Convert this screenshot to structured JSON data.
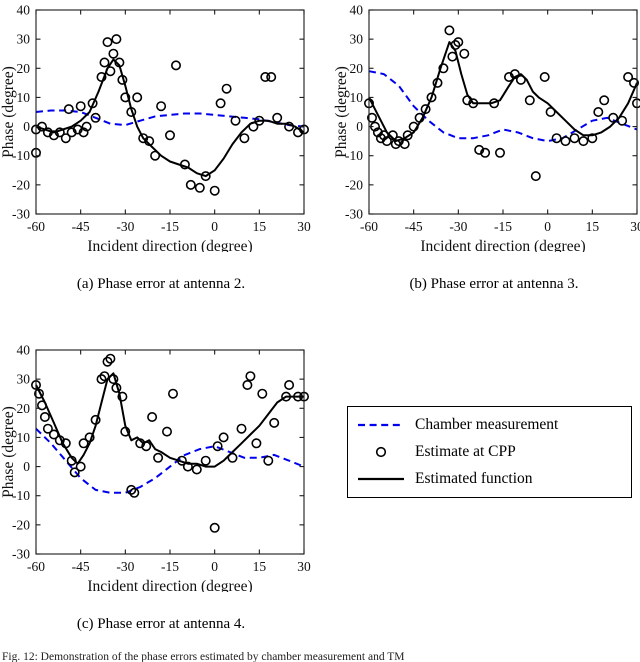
{
  "figure": {
    "captions": {
      "a": "(a) Phase error at antenna 2.",
      "b": "(b) Phase error at antenna 3.",
      "c": "(c) Phase error at antenna 4."
    },
    "bottom_caption": "Fig. 12: Demonstration of the phase errors estimated by chamber measurement and TM"
  },
  "legend": {
    "position": "bottom-right",
    "items": [
      {
        "label": "Chamber measurement",
        "style": "dashed-line",
        "color": "#0000ee"
      },
      {
        "label": "Estimate at CPP",
        "style": "circle-marker",
        "color": "#000000"
      },
      {
        "label": "Estimated function",
        "style": "solid-line",
        "color": "#000000"
      }
    ]
  },
  "chart_data": [
    {
      "id": "a",
      "type": "line+scatter",
      "title": "",
      "xlabel": "Incident direction (degree)",
      "ylabel": "Phase (degree)",
      "xlim": [
        -60,
        30
      ],
      "ylim": [
        -30,
        40
      ],
      "xticks": [
        -60,
        -45,
        -30,
        -15,
        0,
        15,
        30
      ],
      "yticks": [
        -30,
        -20,
        -10,
        0,
        10,
        20,
        30,
        40
      ],
      "series": [
        {
          "name": "Chamber measurement",
          "kind": "line",
          "dashed": true,
          "color": "#0000ee",
          "x": [
            -60,
            -55,
            -50,
            -45,
            -40,
            -35,
            -30,
            -25,
            -20,
            -15,
            -10,
            -5,
            0,
            5,
            10,
            15,
            20,
            25,
            30
          ],
          "y": [
            5,
            5.5,
            5.5,
            5,
            3,
            1,
            0.5,
            2,
            3.5,
            4,
            4.5,
            4.5,
            4,
            3.5,
            3,
            2.5,
            1.5,
            0.5,
            0
          ]
        },
        {
          "name": "Estimated function",
          "kind": "line",
          "dashed": false,
          "color": "#000000",
          "x": [
            -60,
            -57,
            -54,
            -51,
            -48,
            -45,
            -42,
            -39,
            -36,
            -34,
            -32,
            -30,
            -28,
            -26,
            -24,
            -21,
            -18,
            -15,
            -12,
            -9,
            -6,
            -3,
            0,
            3,
            6,
            9,
            12,
            15,
            18,
            21,
            24,
            27,
            30
          ],
          "y": [
            0,
            -1,
            -2,
            -1,
            0,
            2,
            5,
            12,
            20,
            23,
            21,
            14,
            6,
            0,
            -4,
            -7,
            -10,
            -12,
            -13,
            -14,
            -16,
            -17,
            -15,
            -11,
            -6,
            -2,
            1,
            2,
            2,
            1,
            1,
            0,
            -2
          ]
        },
        {
          "name": "Estimate at CPP",
          "kind": "scatter",
          "color": "#000000",
          "points": [
            [
              -60,
              -1
            ],
            [
              -60,
              -9
            ],
            [
              -58,
              0
            ],
            [
              -56,
              -2
            ],
            [
              -54,
              -3
            ],
            [
              -52,
              -2
            ],
            [
              -50,
              -4
            ],
            [
              -49,
              6
            ],
            [
              -48,
              -2
            ],
            [
              -46,
              -1
            ],
            [
              -45,
              7
            ],
            [
              -44,
              -2
            ],
            [
              -43,
              0
            ],
            [
              -41,
              8
            ],
            [
              -40,
              3
            ],
            [
              -38,
              17
            ],
            [
              -37,
              22
            ],
            [
              -36,
              29
            ],
            [
              -35,
              19
            ],
            [
              -34,
              25
            ],
            [
              -33,
              30
            ],
            [
              -32,
              22
            ],
            [
              -31,
              16
            ],
            [
              -30,
              10
            ],
            [
              -28,
              5
            ],
            [
              -26,
              10
            ],
            [
              -24,
              -4
            ],
            [
              -22,
              -5
            ],
            [
              -20,
              -10
            ],
            [
              -18,
              7
            ],
            [
              -15,
              -3
            ],
            [
              -13,
              21
            ],
            [
              -10,
              -13
            ],
            [
              -8,
              -20
            ],
            [
              -5,
              -21
            ],
            [
              -3,
              -17
            ],
            [
              0,
              -22
            ],
            [
              2,
              8
            ],
            [
              4,
              13
            ],
            [
              7,
              2
            ],
            [
              10,
              -4
            ],
            [
              13,
              0
            ],
            [
              15,
              2
            ],
            [
              17,
              17
            ],
            [
              19,
              17
            ],
            [
              21,
              3
            ],
            [
              25,
              0
            ],
            [
              28,
              -2
            ],
            [
              30,
              -1
            ]
          ]
        }
      ]
    },
    {
      "id": "b",
      "type": "line+scatter",
      "title": "",
      "xlabel": "Incident direction (degree)",
      "ylabel": "Phase (degree)",
      "xlim": [
        -60,
        30
      ],
      "ylim": [
        -30,
        40
      ],
      "xticks": [
        -60,
        -45,
        -30,
        -15,
        0,
        15,
        30
      ],
      "yticks": [
        -30,
        -20,
        -10,
        0,
        10,
        20,
        30,
        40
      ],
      "series": [
        {
          "name": "Chamber measurement",
          "kind": "line",
          "dashed": true,
          "color": "#0000ee",
          "x": [
            -60,
            -55,
            -50,
            -45,
            -40,
            -35,
            -30,
            -25,
            -20,
            -15,
            -10,
            -5,
            0,
            5,
            10,
            15,
            20,
            25,
            30
          ],
          "y": [
            19,
            18,
            14,
            7,
            2,
            -2,
            -4,
            -4,
            -3,
            -1,
            -2,
            -4,
            -5,
            -4,
            -1,
            2,
            3,
            1,
            -1
          ]
        },
        {
          "name": "Estimated function",
          "kind": "line",
          "dashed": false,
          "color": "#000000",
          "x": [
            -60,
            -57,
            -54,
            -51,
            -48,
            -45,
            -42,
            -39,
            -36,
            -33,
            -31,
            -29,
            -27,
            -25,
            -22,
            -19,
            -16,
            -13,
            -11,
            -9,
            -7,
            -5,
            -3,
            0,
            3,
            6,
            9,
            12,
            15,
            18,
            21,
            24,
            27,
            30
          ],
          "y": [
            10,
            4,
            -2,
            -5,
            -4,
            -2,
            3,
            10,
            20,
            29,
            26,
            18,
            11,
            8,
            8,
            8,
            9,
            14,
            17,
            18,
            16,
            12,
            10,
            8,
            5,
            2,
            -1,
            -3,
            -3,
            -2,
            0,
            3,
            8,
            15
          ]
        },
        {
          "name": "Estimate at CPP",
          "kind": "scatter",
          "color": "#000000",
          "points": [
            [
              -60,
              8
            ],
            [
              -59,
              3
            ],
            [
              -58,
              0
            ],
            [
              -57,
              -2
            ],
            [
              -56,
              -4
            ],
            [
              -55,
              -3
            ],
            [
              -54,
              -5
            ],
            [
              -52,
              -3
            ],
            [
              -51,
              -6
            ],
            [
              -50,
              -5
            ],
            [
              -48,
              -6
            ],
            [
              -47,
              -3
            ],
            [
              -45,
              0
            ],
            [
              -43,
              3
            ],
            [
              -41,
              6
            ],
            [
              -39,
              10
            ],
            [
              -37,
              15
            ],
            [
              -35,
              20
            ],
            [
              -33,
              33
            ],
            [
              -32,
              24
            ],
            [
              -31,
              28
            ],
            [
              -30,
              29
            ],
            [
              -28,
              25
            ],
            [
              -27,
              9
            ],
            [
              -25,
              8
            ],
            [
              -23,
              -8
            ],
            [
              -21,
              -9
            ],
            [
              -18,
              8
            ],
            [
              -16,
              -9
            ],
            [
              -13,
              17
            ],
            [
              -11,
              18
            ],
            [
              -9,
              16
            ],
            [
              -6,
              9
            ],
            [
              -4,
              -17
            ],
            [
              -1,
              17
            ],
            [
              1,
              5
            ],
            [
              3,
              -4
            ],
            [
              6,
              -5
            ],
            [
              9,
              -4
            ],
            [
              12,
              -5
            ],
            [
              15,
              -4
            ],
            [
              17,
              5
            ],
            [
              19,
              9
            ],
            [
              22,
              3
            ],
            [
              25,
              2
            ],
            [
              27,
              17
            ],
            [
              29,
              15
            ],
            [
              30,
              8
            ]
          ]
        }
      ]
    },
    {
      "id": "c",
      "type": "line+scatter",
      "title": "",
      "xlabel": "Incident direction (degree)",
      "ylabel": "Phase (degree)",
      "xlim": [
        -60,
        30
      ],
      "ylim": [
        -30,
        40
      ],
      "xticks": [
        -60,
        -45,
        -30,
        -15,
        0,
        15,
        30
      ],
      "yticks": [
        -30,
        -20,
        -10,
        0,
        10,
        20,
        30,
        40
      ],
      "series": [
        {
          "name": "Chamber measurement",
          "kind": "line",
          "dashed": true,
          "color": "#0000ee",
          "x": [
            -60,
            -55,
            -50,
            -45,
            -40,
            -35,
            -30,
            -25,
            -20,
            -15,
            -10,
            -5,
            0,
            5,
            10,
            15,
            20,
            25,
            30
          ],
          "y": [
            13,
            8,
            2,
            -4,
            -8,
            -9,
            -9,
            -7,
            -4,
            0,
            4,
            6,
            7,
            5,
            3,
            3,
            4,
            2,
            0
          ]
        },
        {
          "name": "Estimated function",
          "kind": "line",
          "dashed": false,
          "color": "#000000",
          "x": [
            -60,
            -57,
            -54,
            -51,
            -48,
            -46,
            -44,
            -42,
            -40,
            -38,
            -36,
            -34,
            -32,
            -30,
            -28,
            -26,
            -24,
            -22,
            -20,
            -18,
            -15,
            -12,
            -9,
            -6,
            -3,
            0,
            3,
            6,
            9,
            12,
            15,
            18,
            21,
            24,
            27,
            30
          ],
          "y": [
            28,
            22,
            15,
            8,
            3,
            1,
            4,
            8,
            14,
            22,
            30,
            32,
            25,
            14,
            9,
            10,
            8,
            9,
            6,
            5,
            3,
            2,
            1,
            1,
            0,
            0,
            2,
            5,
            8,
            11,
            14,
            18,
            22,
            24,
            24,
            24
          ]
        },
        {
          "name": "Estimate at CPP",
          "kind": "scatter",
          "color": "#000000",
          "points": [
            [
              -60,
              28
            ],
            [
              -59,
              25
            ],
            [
              -58,
              21
            ],
            [
              -57,
              17
            ],
            [
              -56,
              13
            ],
            [
              -54,
              11
            ],
            [
              -52,
              9
            ],
            [
              -50,
              8
            ],
            [
              -48,
              2
            ],
            [
              -47,
              -2
            ],
            [
              -45,
              0
            ],
            [
              -44,
              8
            ],
            [
              -42,
              10
            ],
            [
              -40,
              16
            ],
            [
              -38,
              30
            ],
            [
              -37,
              31
            ],
            [
              -36,
              36
            ],
            [
              -35,
              37
            ],
            [
              -34,
              30
            ],
            [
              -33,
              27
            ],
            [
              -31,
              24
            ],
            [
              -30,
              12
            ],
            [
              -28,
              -8
            ],
            [
              -27,
              -9
            ],
            [
              -25,
              8
            ],
            [
              -23,
              7
            ],
            [
              -21,
              17
            ],
            [
              -19,
              3
            ],
            [
              -16,
              12
            ],
            [
              -14,
              25
            ],
            [
              -11,
              2
            ],
            [
              -9,
              0
            ],
            [
              -6,
              -1
            ],
            [
              -3,
              2
            ],
            [
              0,
              -21
            ],
            [
              1,
              7
            ],
            [
              3,
              10
            ],
            [
              6,
              3
            ],
            [
              9,
              13
            ],
            [
              11,
              28
            ],
            [
              12,
              31
            ],
            [
              14,
              8
            ],
            [
              16,
              25
            ],
            [
              18,
              2
            ],
            [
              20,
              15
            ],
            [
              24,
              24
            ],
            [
              25,
              28
            ],
            [
              28,
              24
            ],
            [
              30,
              24
            ]
          ]
        }
      ]
    }
  ]
}
